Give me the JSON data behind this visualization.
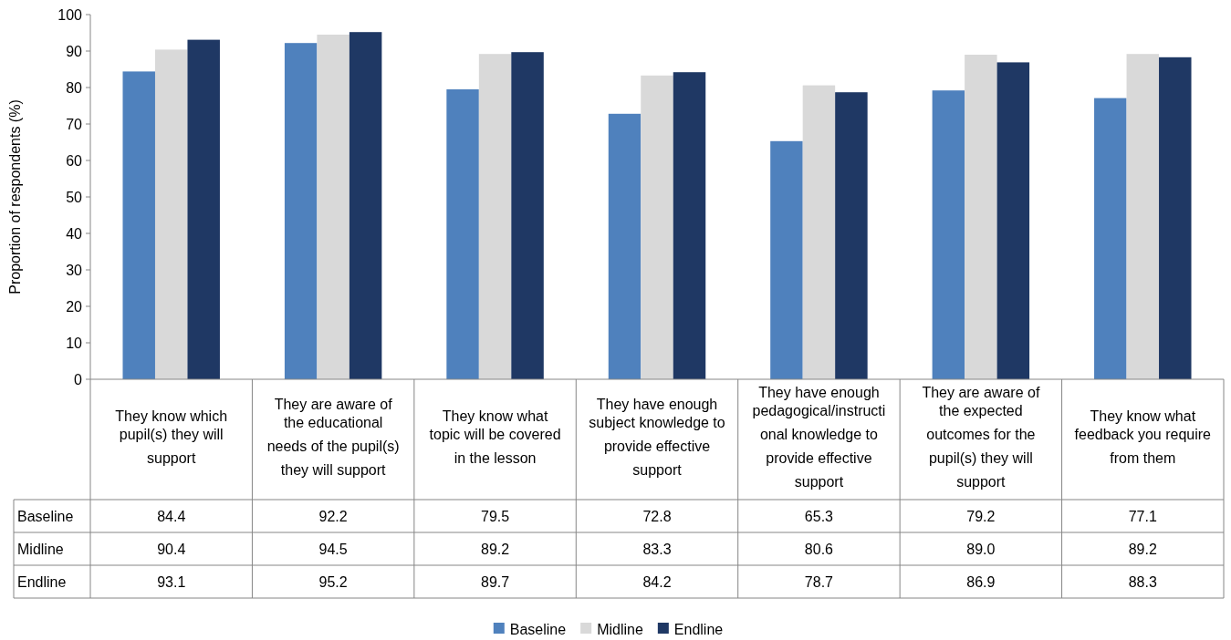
{
  "chart_data": {
    "type": "bar",
    "ylabel": "Proportion of respondents (%)",
    "categories": [
      "They know which pupil(s) they will support",
      "They are aware of the educational needs of the pupil(s) they will support",
      "They know what topic will be covered in the lesson",
      "They have enough subject knowledge to provide effective support",
      "They have enough pedagogical/instructional knowledge to provide effective support",
      "They are aware of the expected outcomes for the pupil(s) they will support",
      "They know what feedback you require from them"
    ],
    "series": [
      {
        "name": "Baseline",
        "color": "#4f81bd",
        "values": [
          84.4,
          92.2,
          79.5,
          72.8,
          65.3,
          79.2,
          77.1
        ],
        "value_labels": [
          "84.4",
          "92.2",
          "79.5",
          "72.8",
          "65.3",
          "79.2",
          "77.1"
        ]
      },
      {
        "name": "Midline",
        "color": "#d9d9d9",
        "values": [
          90.4,
          94.5,
          89.2,
          83.3,
          80.6,
          89.0,
          89.2
        ],
        "value_labels": [
          "90.4",
          "94.5",
          "89.2",
          "83.3",
          "80.6",
          "89.0",
          "89.2"
        ]
      },
      {
        "name": "Endline",
        "color": "#1f3864",
        "values": [
          93.1,
          95.2,
          89.7,
          84.2,
          78.7,
          86.9,
          88.3
        ],
        "value_labels": [
          "93.1",
          "95.2",
          "89.7",
          "84.2",
          "78.7",
          "86.9",
          "88.3"
        ]
      }
    ],
    "ylim": [
      0,
      100
    ],
    "yticks": [
      0,
      10,
      20,
      30,
      40,
      50,
      60,
      70,
      80,
      90,
      100
    ],
    "legend": "bottom"
  }
}
